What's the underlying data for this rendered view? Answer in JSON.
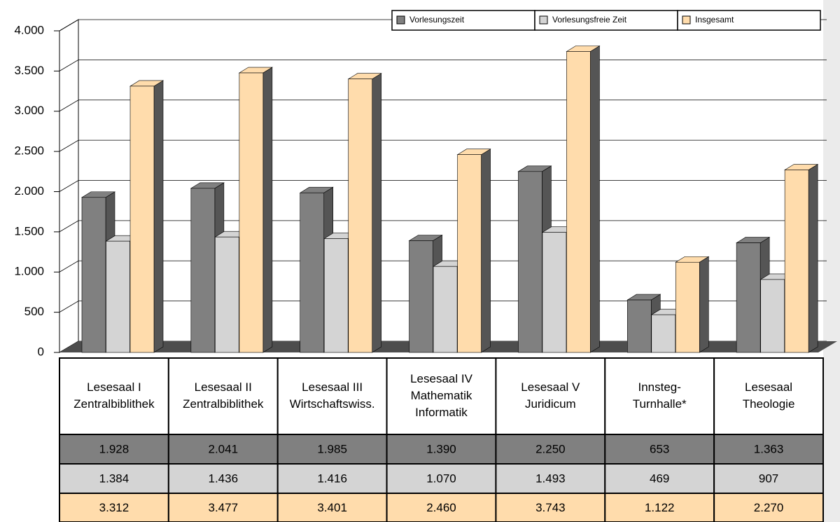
{
  "chart_data": {
    "type": "bar3d",
    "categories": [
      [
        "Lesesaal I",
        "Zentralbiblithek"
      ],
      [
        "Lesesaal II",
        "Zentralbiblithek"
      ],
      [
        "Lesesaal III",
        "Wirtschaftswiss."
      ],
      [
        "Lesesaal IV",
        "Mathematik",
        "Informatik"
      ],
      [
        "Lesesaal V",
        "Juridicum"
      ],
      [
        "Innsteg-",
        "Turnhalle*"
      ],
      [
        "Lesesaal",
        "Theologie"
      ]
    ],
    "series": [
      {
        "name": "Vorlesungszeit",
        "color": "#808080",
        "values": [
          1928,
          2041,
          1985,
          1390,
          2250,
          653,
          1363
        ],
        "value_labels": [
          "1.928",
          "2.041",
          "1.985",
          "1.390",
          "2.250",
          "653",
          "1.363"
        ]
      },
      {
        "name": "Vorlesungsfreie Zeit",
        "color": "#d4d4d4",
        "values": [
          1384,
          1436,
          1416,
          1070,
          1493,
          469,
          907
        ],
        "value_labels": [
          "1.384",
          "1.436",
          "1.416",
          "1.070",
          "1.493",
          "469",
          "907"
        ]
      },
      {
        "name": "Insgesamt",
        "color": "#ffdcac",
        "values": [
          3312,
          3477,
          3401,
          2460,
          3743,
          1122,
          2270
        ],
        "value_labels": [
          "3.312",
          "3.477",
          "3.401",
          "2.460",
          "3.743",
          "1.122",
          "2.270"
        ]
      }
    ],
    "ylim": [
      0,
      4000
    ],
    "yticks": [
      0,
      500,
      {
        "value": 1000,
        "label": "1.000"
      },
      {
        "value": 1500,
        "label": "1.500"
      },
      {
        "value": 2000,
        "label": "2.000"
      },
      {
        "value": 2500,
        "label": "2.500"
      },
      {
        "value": 3000,
        "label": "3.000"
      },
      {
        "value": 3500,
        "label": "3.500"
      },
      {
        "value": 4000,
        "label": "4.000"
      }
    ],
    "grid": true,
    "legend": "top-right"
  }
}
